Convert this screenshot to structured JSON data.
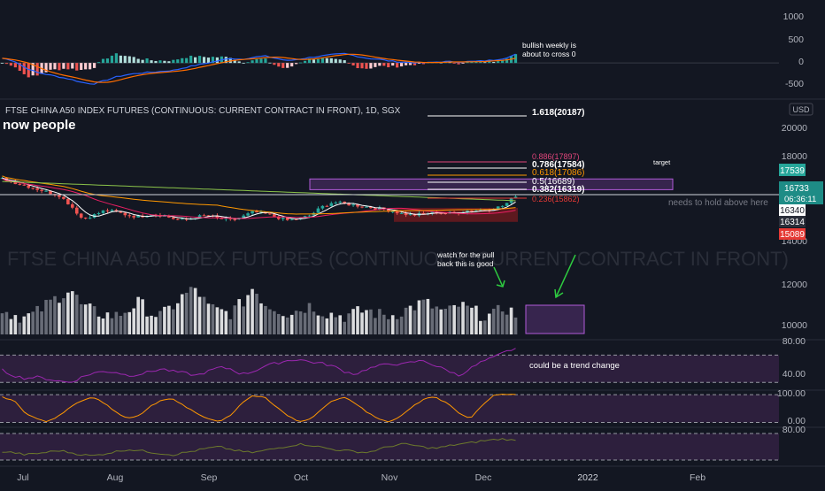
{
  "header": {
    "symbol_title": "FTSE CHINA A50 INDEX FUTURES (CONTINUOUS: CURRENT CONTRACT IN FRONT), 1D, SGX",
    "idea_title": "now people",
    "watermark": "FTSE CHINA A50 INDEX FUTURES (CONTINUOUS: CURRENT CONTRACT IN FRONT)",
    "usd_label": "USD"
  },
  "annotations": {
    "bullish_weekly_1": "bullish weekly is",
    "bullish_weekly_2": "about to cross 0",
    "target": "target",
    "hold_above": "needs to hold above here",
    "pullback_1": "watch for the pull",
    "pullback_2": "back this is good",
    "trend_change": "could be a trend change"
  },
  "x_axis": [
    "Jul",
    "Aug",
    "Sep",
    "Oct",
    "Nov",
    "Dec",
    "2022",
    "Feb"
  ],
  "macd_axis": [
    "1000",
    "500",
    "0",
    "-500"
  ],
  "price_axis": [
    "20000",
    "18000",
    "14000",
    "12000",
    "10000"
  ],
  "rsi_axis": [
    "80.00",
    "40.00"
  ],
  "stoch_axis": [
    "100.00",
    "0.00"
  ],
  "osc3_axis": [
    "80.00"
  ],
  "price_tags": [
    {
      "text": "17539",
      "bg": "#26a69a",
      "fg": "#ffffff"
    },
    {
      "text": "16733",
      "bg": "#1e8c86",
      "fg": "#ffffff"
    },
    {
      "text": "06:36:11",
      "bg": "#1e8c86",
      "fg": "#ffffff"
    },
    {
      "text": "16340",
      "bg": "#ffffff",
      "fg": "#131722"
    },
    {
      "text": "16314",
      "bg": "#2a2e39",
      "fg": "#ffffff"
    },
    {
      "text": "15089",
      "bg": "#e53935",
      "fg": "#ffffff"
    }
  ],
  "fib_levels": [
    {
      "label": "1.618(20187)",
      "color": "#ffffff"
    },
    {
      "label": "0.886(17897)",
      "color": "#e0457b"
    },
    {
      "label": "0.786(17584)",
      "color": "#ffffff"
    },
    {
      "label": "0.618(17086)",
      "color": "#ff9800"
    },
    {
      "label": "0.5(16689)",
      "color": "#ffffff"
    },
    {
      "label": "0.382(16319)",
      "color": "#ffffff"
    },
    {
      "label": "0.236(15862)",
      "color": "#e53935"
    }
  ],
  "chart_data": {
    "type": "candlestick",
    "title": "FTSE CHINA A50 INDEX FUTURES (CONTINUOUS: CURRENT CONTRACT IN FRONT), 1D, SGX",
    "x_range": [
      "2021-06-28",
      "2022-02-20"
    ],
    "price_ylim": [
      13000,
      20500
    ],
    "last_price": 16733,
    "price_path": [
      17700,
      17500,
      17300,
      17100,
      16900,
      16700,
      16100,
      15300,
      15500,
      15800,
      15700,
      15500,
      15400,
      15600,
      15500,
      15300,
      15200,
      15400,
      15500,
      15300,
      15200,
      15400,
      15700,
      15600,
      15400,
      15200,
      15300,
      15500,
      16000,
      16300,
      16200,
      16100,
      16000,
      15900,
      15800,
      15600,
      15500,
      15600,
      15700,
      15600,
      15700,
      15800,
      15800,
      15900,
      16100,
      16700
    ],
    "fibonacci": [
      {
        "ratio": 1.618,
        "value": 20187
      },
      {
        "ratio": 0.886,
        "value": 17897
      },
      {
        "ratio": 0.786,
        "value": 17584
      },
      {
        "ratio": 0.618,
        "value": 17086
      },
      {
        "ratio": 0.5,
        "value": 16689
      },
      {
        "ratio": 0.382,
        "value": 16319
      },
      {
        "ratio": 0.236,
        "value": 15862
      }
    ],
    "volume_ylim": [
      9000,
      13500
    ],
    "volume_path": [
      10600,
      10300,
      10100,
      10400,
      11000,
      11500,
      12000,
      10800,
      10500,
      10300,
      10200,
      10600,
      11100,
      10400,
      10200,
      10900,
      11600,
      12000,
      10800,
      10500,
      10400,
      11000,
      12100,
      11000,
      10700,
      10400,
      10600,
      10900,
      10500,
      10300,
      10200,
      10400,
      10600,
      10300,
      10200,
      10500,
      10800,
      11100,
      10700,
      10400,
      10900,
      10600,
      10300,
      10200,
      10800,
      10300
    ],
    "macd_ylim": [
      -700,
      1200
    ],
    "macd_path": [
      100,
      50,
      -100,
      -200,
      -250,
      -300,
      -350,
      -420,
      -450,
      -380,
      -300,
      -250,
      -220,
      -200,
      -180,
      -160,
      -100,
      -50,
      0,
      50,
      100,
      80,
      120,
      150,
      100,
      50,
      80,
      120,
      150,
      180,
      200,
      150,
      100,
      80,
      40,
      20,
      10,
      0,
      20,
      30,
      20,
      30,
      40,
      60,
      100,
      180
    ],
    "rsi_ylim": [
      20,
      90
    ],
    "rsi_path": [
      48,
      40,
      36,
      38,
      35,
      32,
      30,
      38,
      44,
      46,
      45,
      40,
      42,
      46,
      50,
      46,
      44,
      40,
      46,
      52,
      50,
      42,
      46,
      54,
      58,
      62,
      64,
      60,
      58,
      54,
      46,
      42,
      50,
      54,
      58,
      56,
      60,
      62,
      54,
      48,
      40,
      50,
      60,
      66,
      74,
      80
    ],
    "stoch_ylim": [
      -5,
      110
    ],
    "stoch_path": [
      90,
      80,
      40,
      20,
      10,
      30,
      60,
      80,
      90,
      70,
      40,
      20,
      30,
      60,
      80,
      85,
      60,
      40,
      20,
      10,
      30,
      70,
      95,
      90,
      60,
      30,
      10,
      20,
      50,
      80,
      90,
      70,
      40,
      20,
      10,
      30,
      60,
      85,
      90,
      70,
      40,
      20,
      60,
      95,
      100,
      98
    ],
    "osc3_ylim": [
      20,
      90
    ],
    "osc3_path": [
      46,
      44,
      40,
      42,
      45,
      48,
      44,
      40,
      38,
      42,
      46,
      50,
      48,
      45,
      42,
      40,
      44,
      48,
      52,
      55,
      50,
      46,
      44,
      48,
      52,
      56,
      60,
      58,
      54,
      50,
      48,
      46,
      44,
      50,
      56,
      60,
      58,
      54,
      52,
      56,
      60,
      62,
      66,
      68,
      70,
      66
    ],
    "rsi_bands": [
      70,
      30
    ],
    "stoch_bands": [
      80,
      20
    ]
  },
  "colors": {
    "bg": "#131722",
    "up": "#26a69a",
    "down": "#ef5350",
    "rsi_line": "#9c27b0",
    "rsi_band": "#2d1f3d",
    "stoch_line": "#ff9800",
    "osc3_line": "#6d7a2c",
    "macd_line": "#2962ff",
    "signal_line": "#ff6d00",
    "target_zone": "#7b3fa0",
    "red_zone": "#b71c1c",
    "vol_up": "#ffffff",
    "vol_gray": "#787b86"
  }
}
